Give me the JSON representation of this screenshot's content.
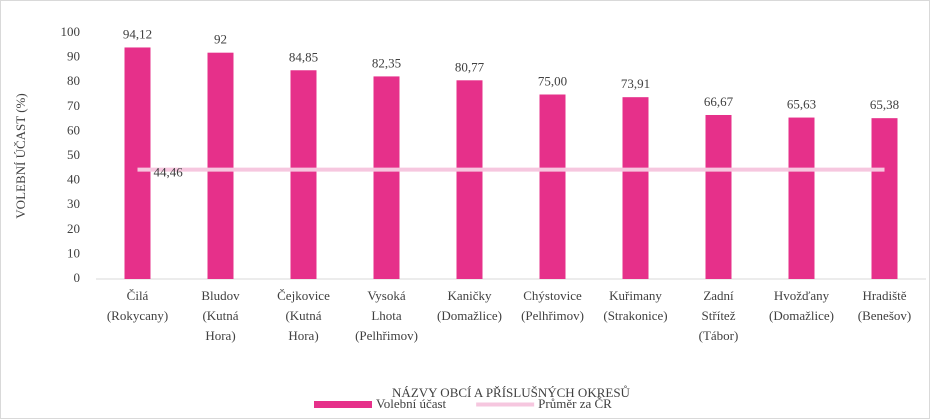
{
  "chart_data": {
    "type": "bar",
    "categories": [
      "Čilá\n(Rokycany)",
      "Bludov\n(Kutná\nHora)",
      "Čejkovice\n(Kutná\nHora)",
      "Vysoká\nLhota\n(Pelhřimov)",
      "Kaničky\n(Domažlice)",
      "Chýstovice\n(Pelhřimov)",
      "Kuřimany\n(Strakonice)",
      "Zadní\nStřítež\n(Tábor)",
      "Hvožďany\n(Domažlice)",
      "Hradiště\n(Benešov)"
    ],
    "series": [
      {
        "name": "Volební účast",
        "type": "bar",
        "color": "#e6308a",
        "values": [
          94.12,
          92,
          84.85,
          82.35,
          80.77,
          75.0,
          73.91,
          66.67,
          65.63,
          65.38
        ],
        "value_labels": [
          "94,12",
          "92",
          "84,85",
          "82,35",
          "80,77",
          "75,00",
          "73,91",
          "66,67",
          "65,63",
          "65,38"
        ]
      },
      {
        "name": "Průměr za ČR",
        "type": "line",
        "color": "#f6c7df",
        "values": [
          44.46,
          44.46,
          44.46,
          44.46,
          44.46,
          44.46,
          44.46,
          44.46,
          44.46,
          44.46
        ],
        "value_labels": [
          "44,46",
          null,
          null,
          null,
          null,
          null,
          null,
          null,
          null,
          null
        ]
      }
    ],
    "ylabel": "VOLEBNÍ ÚČAST (%)",
    "xlabel": "NÁZVY OBCÍ A PŘÍSLUŠNÝCH OKRESŮ",
    "ylim": [
      0,
      100
    ],
    "yticks": [
      0,
      10,
      20,
      30,
      40,
      50,
      60,
      70,
      80,
      90,
      100
    ],
    "grid": false,
    "legend": "bottom"
  }
}
